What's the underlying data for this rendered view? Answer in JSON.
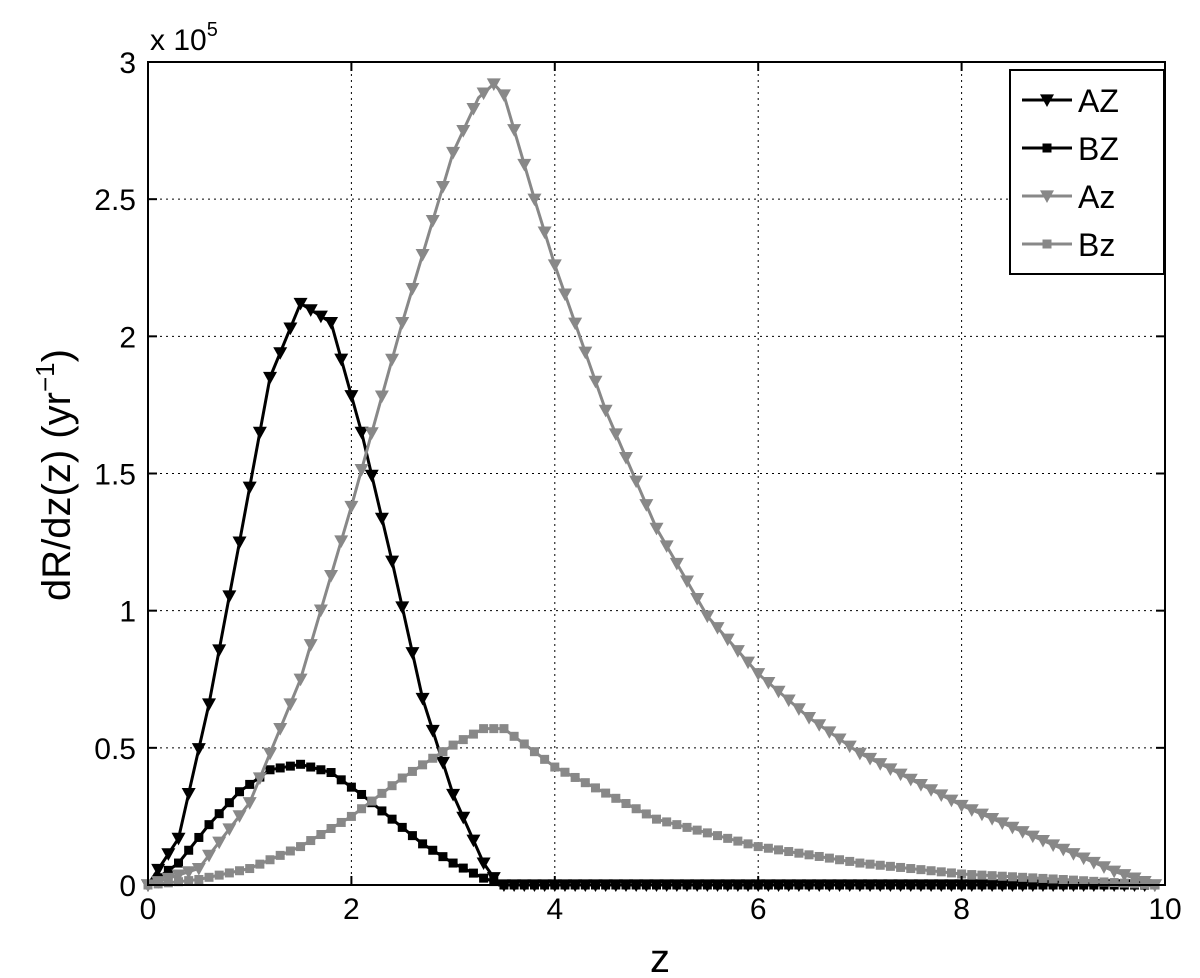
{
  "chart_data": {
    "type": "line",
    "xlabel": "z",
    "ylabel": "dR/dz(z) (yr",
    "ylabel_sup": "−1",
    "ylabel_close": ")",
    "yexp_prefix": "x 10",
    "yexp_power": "5",
    "xlim": [
      0,
      10
    ],
    "ylim": [
      0,
      3
    ],
    "y_scale_factor": 100000,
    "grid": true,
    "legend_position": "top-right",
    "xticks": [
      0,
      2,
      4,
      6,
      8,
      10
    ],
    "xtick_labels": [
      "0",
      "2",
      "4",
      "6",
      "8",
      "10"
    ],
    "yticks": [
      0,
      0.5,
      1,
      1.5,
      2,
      2.5,
      3
    ],
    "ytick_labels": [
      "0",
      "0.5",
      "1",
      "1.5",
      "2",
      "2.5",
      "3"
    ],
    "series": [
      {
        "name": "AZ",
        "color": "#000000",
        "marker": "triangle-down",
        "x": [
          0.0,
          0.3,
          0.6,
          0.9,
          1.2,
          1.5,
          1.8,
          2.1,
          2.4,
          2.7,
          3.0,
          3.3,
          3.45,
          3.6,
          4.0,
          5.0,
          6.0,
          7.0,
          8.0,
          9.0,
          9.9
        ],
        "y": [
          0.0,
          0.17,
          0.66,
          1.25,
          1.85,
          2.12,
          2.05,
          1.65,
          1.18,
          0.68,
          0.33,
          0.08,
          0.0,
          0.0,
          0.0,
          0.0,
          0.0,
          0.0,
          0.0,
          0.0,
          0.0
        ]
      },
      {
        "name": "BZ",
        "color": "#000000",
        "marker": "square",
        "x": [
          0.0,
          0.3,
          0.6,
          0.9,
          1.2,
          1.5,
          1.8,
          2.1,
          2.4,
          2.7,
          3.0,
          3.3,
          3.5,
          4.0,
          5.0,
          6.0,
          7.0,
          8.0,
          9.0,
          9.9
        ],
        "y": [
          0.0,
          0.08,
          0.22,
          0.34,
          0.42,
          0.44,
          0.41,
          0.33,
          0.24,
          0.15,
          0.08,
          0.025,
          0.0,
          0.0,
          0.0,
          0.0,
          0.0,
          0.0,
          0.0,
          0.0
        ]
      },
      {
        "name": "Az",
        "color": "#888888",
        "marker": "triangle-down",
        "x": [
          0.0,
          0.5,
          1.0,
          1.5,
          2.0,
          2.5,
          3.0,
          3.25,
          3.4,
          3.5,
          3.8,
          4.0,
          4.5,
          5.0,
          5.5,
          6.0,
          6.5,
          7.0,
          8.0,
          9.0,
          9.5,
          9.9
        ],
        "y": [
          0.0,
          0.06,
          0.3,
          0.75,
          1.38,
          2.05,
          2.67,
          2.87,
          2.92,
          2.88,
          2.5,
          2.26,
          1.73,
          1.3,
          0.98,
          0.77,
          0.61,
          0.48,
          0.29,
          0.13,
          0.05,
          0.0
        ]
      },
      {
        "name": "Bz",
        "color": "#888888",
        "marker": "square",
        "x": [
          0.0,
          0.5,
          1.0,
          1.5,
          2.0,
          2.5,
          3.0,
          3.3,
          3.5,
          4.0,
          5.0,
          6.0,
          7.0,
          8.0,
          9.0,
          9.9
        ],
        "y": [
          0.0,
          0.02,
          0.06,
          0.14,
          0.25,
          0.39,
          0.51,
          0.57,
          0.57,
          0.43,
          0.24,
          0.14,
          0.08,
          0.04,
          0.02,
          0.0
        ]
      }
    ]
  }
}
